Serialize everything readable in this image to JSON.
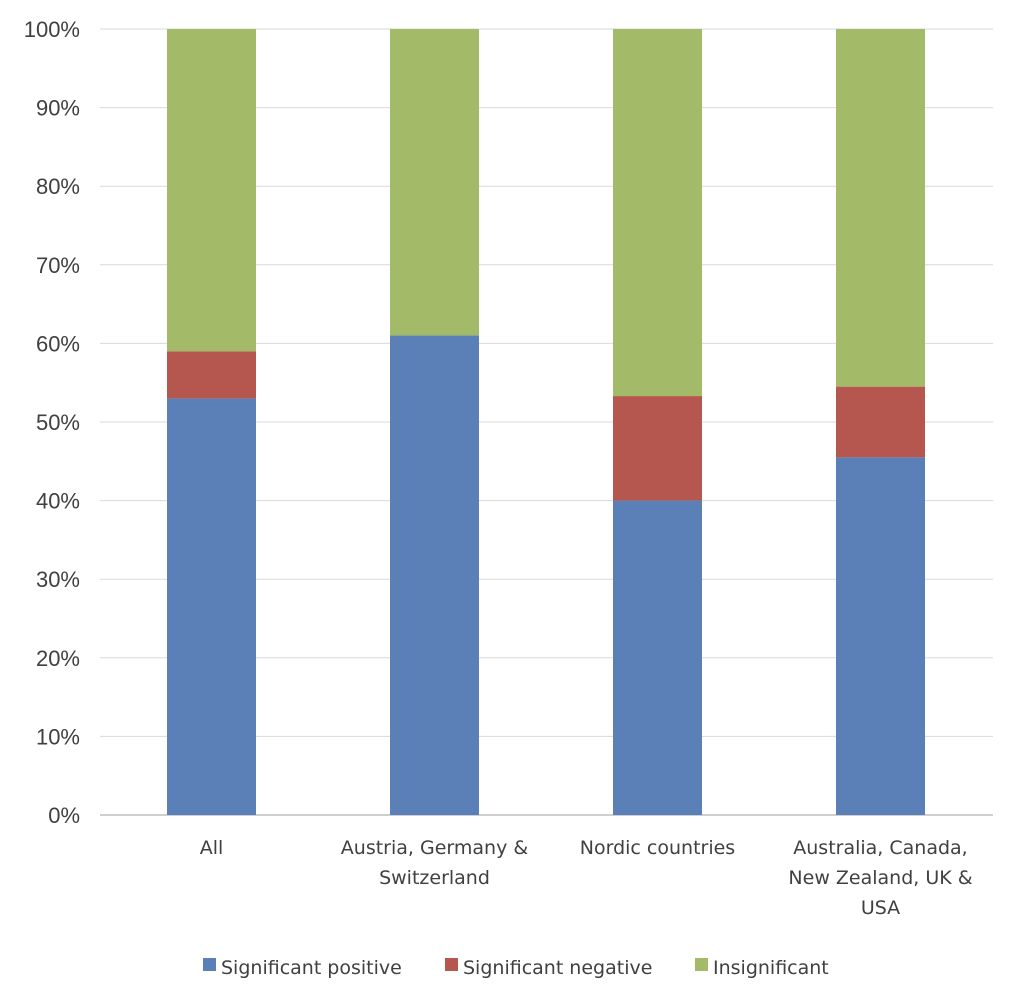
{
  "chart_data": {
    "type": "bar",
    "stacked": true,
    "categories": [
      [
        "All"
      ],
      [
        "Austria, Germany &",
        "Switzerland"
      ],
      [
        "Nordic countries"
      ],
      [
        "Australia, Canada,",
        "New Zealand, UK &",
        "USA"
      ]
    ],
    "series": [
      {
        "name": "Significant positive",
        "color": "#5b80b8",
        "values": [
          53,
          61,
          40,
          45.5
        ]
      },
      {
        "name": "Significant negative",
        "color": "#b5574f",
        "values": [
          6,
          0,
          13.3,
          9
        ]
      },
      {
        "name": "Insignificant",
        "color": "#a3ba68",
        "values": [
          41,
          39,
          46.7,
          45.5
        ]
      }
    ],
    "yticks": [
      "0%",
      "10%",
      "20%",
      "30%",
      "40%",
      "50%",
      "60%",
      "70%",
      "80%",
      "90%",
      "100%"
    ],
    "ylim": [
      0,
      100
    ],
    "grid": true,
    "legend": "bottom",
    "title": "",
    "xlabel": "",
    "ylabel": ""
  }
}
